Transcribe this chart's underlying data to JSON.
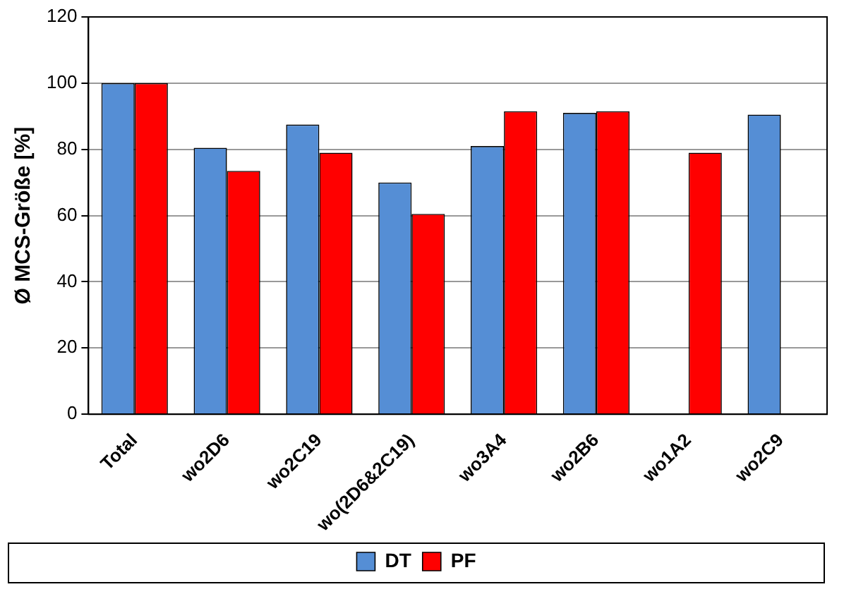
{
  "chart_data": {
    "type": "bar",
    "ylabel": "Ø MCS-Größe [%]",
    "categories": [
      "Total",
      "wo2D6",
      "wo2C19",
      "wo(2D6&2C19)",
      "wo3A4",
      "wo2B6",
      "wo1A2",
      "wo2C9"
    ],
    "series": [
      {
        "name": "DT",
        "color": "#558ed5",
        "values": [
          100,
          80.5,
          87.5,
          70,
          81,
          91,
          null,
          90.5
        ]
      },
      {
        "name": "PF",
        "color": "#ff0000",
        "values": [
          100,
          73.5,
          79,
          60.5,
          91.5,
          91.5,
          79,
          null
        ]
      }
    ],
    "ylim": [
      0,
      120
    ],
    "yticks": [
      0,
      20,
      40,
      60,
      80,
      100,
      120
    ],
    "grid": "y",
    "legend": "bottom"
  }
}
